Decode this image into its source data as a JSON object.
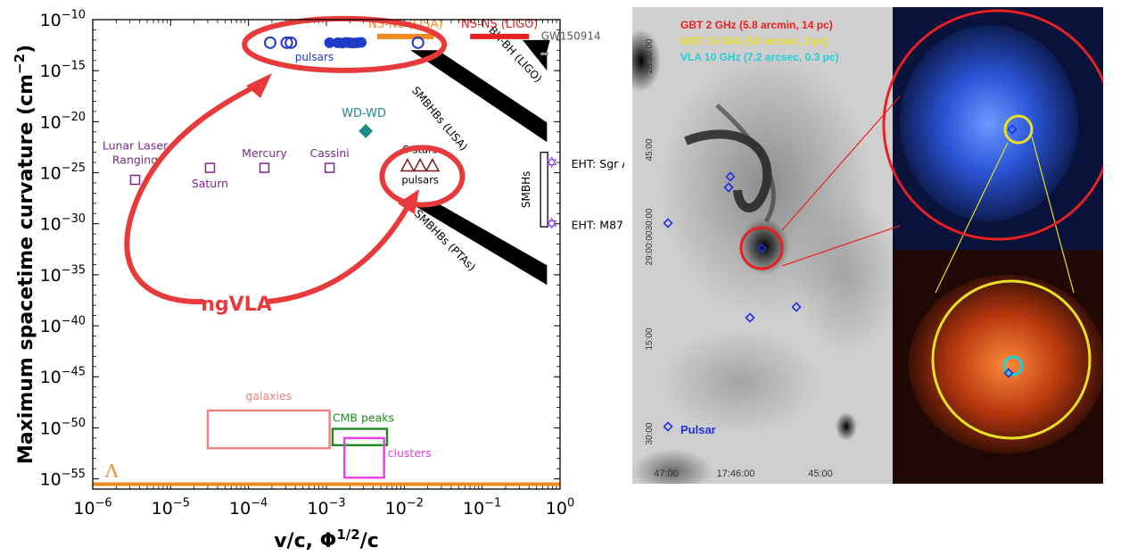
{
  "chart_data": {
    "type": "scatter",
    "xscale": "log",
    "yscale": "log",
    "xlim": [
      1e-06,
      1
    ],
    "ylim": [
      1e-56,
      1e-10
    ],
    "xlabel": {
      "main": "v/c, Φ",
      "sup": "1/2",
      "tail": "/c"
    },
    "ylabel": {
      "main": "Maximum spacetime curvature (cm",
      "sup": "−2",
      "tail": ")"
    },
    "x_ticks": [
      {
        "v": 1e-06,
        "mant": "10",
        "exp": "−6"
      },
      {
        "v": 1e-05,
        "mant": "10",
        "exp": "−5"
      },
      {
        "v": 0.0001,
        "mant": "10",
        "exp": "−4"
      },
      {
        "v": 0.001,
        "mant": "10",
        "exp": "−3"
      },
      {
        "v": 0.01,
        "mant": "10",
        "exp": "−2"
      },
      {
        "v": 0.1,
        "mant": "10",
        "exp": "−1"
      },
      {
        "v": 1,
        "mant": "10",
        "exp": "0"
      }
    ],
    "y_ticks": [
      {
        "v": 1e-10,
        "mant": "10",
        "exp": "−10"
      },
      {
        "v": 1e-15,
        "mant": "10",
        "exp": "−15"
      },
      {
        "v": 1e-20,
        "mant": "10",
        "exp": "−20"
      },
      {
        "v": 1e-25,
        "mant": "10",
        "exp": "−25"
      },
      {
        "v": 1e-30,
        "mant": "10",
        "exp": "−30"
      },
      {
        "v": 1e-35,
        "mant": "10",
        "exp": "−35"
      },
      {
        "v": 1e-40,
        "mant": "10",
        "exp": "−40"
      },
      {
        "v": 1e-45,
        "mant": "10",
        "exp": "−45"
      },
      {
        "v": 1e-50,
        "mant": "10",
        "exp": "−50"
      },
      {
        "v": 1e-55,
        "mant": "10",
        "exp": "−55"
      }
    ],
    "solar_system_tests": {
      "color": "#7b2a83",
      "points": [
        {
          "label": "Lunar Laser\nRanging",
          "x": 3.5e-06,
          "y": 2e-26
        },
        {
          "label": "Saturn",
          "x": 3.2e-05,
          "y": 3e-25
        },
        {
          "label": "Mercury",
          "x": 0.00016,
          "y": 3e-25
        },
        {
          "label": "Cassini",
          "x": 0.0011,
          "y": 3e-25
        }
      ]
    },
    "wd_wd": {
      "label": "WD-WD",
      "x": 0.0032,
      "y": 1.2e-21,
      "color": "#1f8a8a"
    },
    "pulsars_open": {
      "color": "#1e3cc8",
      "x": [
        0.00019,
        0.00031,
        0.00035,
        0.015
      ],
      "y": [
        1.5e-12,
        1.5e-12,
        1.5e-12,
        1.5e-12
      ]
    },
    "pulsars_filled": {
      "label": "pulsars",
      "color": "#1e3cc8",
      "x": [
        0.0011,
        0.0014,
        0.0016,
        0.0018,
        0.002,
        0.0022,
        0.0025,
        0.0028
      ],
      "y": [
        1.5e-12,
        1.5e-12,
        1.4e-12,
        1.6e-12,
        1.5e-12,
        1.4e-12,
        1.5e-12,
        1.6e-12
      ]
    },
    "bars": [
      {
        "label": "NS-NS (LISA)",
        "color": "#f08a1c",
        "x0": 0.0045,
        "x1": 0.024,
        "y": 1.5e-12
      },
      {
        "label": "NS-NS (LIGO)",
        "color": "#e82020",
        "x0": 0.07,
        "x1": 0.4,
        "y": 1.5e-12
      }
    ],
    "gw150914": {
      "label": "GW150914",
      "x0": 0.35,
      "x1": 0.75,
      "y": 1e-13,
      "color": "#9a9a9a"
    },
    "bands": [
      {
        "label": "BH-BH (LIGO)",
        "x0": 0.33,
        "x1": 0.68,
        "y0": 1e-12,
        "y1": 1e-15
      },
      {
        "label": "SMBHBs (LISA)",
        "x0": 0.012,
        "x1": 0.68,
        "y0": 1e-13,
        "y1": 1e-22
      },
      {
        "label": "SMBHBs (PTAs)",
        "x0": 0.012,
        "x1": 0.68,
        "y0": 1e-28,
        "y1": 1e-36
      }
    ],
    "smbh_box": {
      "label": "SMBHs",
      "x0": 0.48,
      "x1": 0.6,
      "y0": 1e-23,
      "y1": 5e-31
    },
    "eht": [
      {
        "label": "EHT: Sgr A*",
        "x": 0.78,
        "y": 1e-24
      },
      {
        "label": "EHT: M87",
        "x": 0.78,
        "y": 1e-30
      }
    ],
    "eht_color": "#7a2fd8",
    "s_stars": {
      "label": "S stars",
      "sublabel": "pulsars",
      "color": "#7a1a1a",
      "x": [
        0.011,
        0.016,
        0.023
      ],
      "y": 5e-25
    },
    "cosmology": [
      {
        "label": "galaxies",
        "color": "#f08080",
        "x0": 3e-05,
        "x1": 0.0011,
        "y0": 5e-49,
        "y1": 1e-52
      },
      {
        "label": "CMB peaks",
        "color": "#1f8a1f",
        "x0": 0.0012,
        "x1": 0.006,
        "y0": 8e-51,
        "y1": 2e-52
      },
      {
        "label": "clusters",
        "color": "#ef3fe6",
        "x0": 0.0017,
        "x1": 0.0055,
        "y0": 1e-51,
        "y1": 1.3e-55
      }
    ],
    "lambda": {
      "label": "Λ",
      "color": "#f08a1c",
      "y": 3e-56
    },
    "annotation": {
      "label": "ngVLA",
      "color": "#e83a3a"
    }
  },
  "image_panel": {
    "legend": [
      {
        "text": "GBT 2 GHz (5.8 arcmin, 14 pc)",
        "color": "#e82020"
      },
      {
        "text": "GBT 15 GHz (50 arcsec, 2 pc)",
        "color": "#e8e020"
      },
      {
        "text": "VLA 10 GHz (7.2 arcsec, 0.3 pc)",
        "color": "#20d0d8"
      }
    ],
    "ra_ticks": [
      "47:00",
      "17:46:00",
      "45:00"
    ],
    "dec_ticks": [
      "28:30:00",
      "45:00",
      "30:00",
      "29:00:00",
      "15:00",
      "30:00"
    ],
    "pulsar_legend": "Pulsar",
    "colors": {
      "red": "#e82020",
      "yellow": "#e8e020",
      "cyan": "#20d0d8",
      "pulsar": "#2030e0"
    }
  }
}
